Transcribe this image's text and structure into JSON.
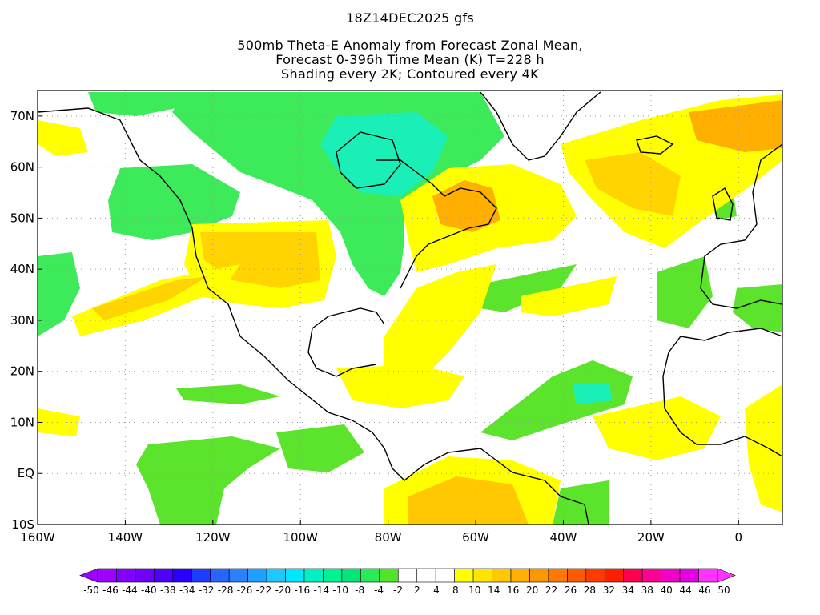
{
  "titles": {
    "line1": "18Z14DEC2025 gfs",
    "line2": "500mb Theta-E Anomaly from Forecast Zonal Mean,",
    "line3": "Forecast 0-396h Time Mean (K) T=228 h",
    "line4": "Shading every 2K; Contoured every 4K"
  },
  "map": {
    "lon_range": [
      -160,
      10
    ],
    "lat_range": [
      -10,
      75
    ],
    "lat_ticks": [
      {
        "value": 70,
        "label": "70N"
      },
      {
        "value": 60,
        "label": "60N"
      },
      {
        "value": 50,
        "label": "50N"
      },
      {
        "value": 40,
        "label": "40N"
      },
      {
        "value": 30,
        "label": "30N"
      },
      {
        "value": 20,
        "label": "20N"
      },
      {
        "value": 10,
        "label": "10N"
      },
      {
        "value": 0,
        "label": "EQ"
      },
      {
        "value": -10,
        "label": "10S"
      }
    ],
    "lon_ticks": [
      {
        "value": -160,
        "label": "160W"
      },
      {
        "value": -140,
        "label": "140W"
      },
      {
        "value": -120,
        "label": "120W"
      },
      {
        "value": -100,
        "label": "100W"
      },
      {
        "value": -80,
        "label": "80W"
      },
      {
        "value": -60,
        "label": "60W"
      },
      {
        "value": -40,
        "label": "40W"
      },
      {
        "value": -20,
        "label": "20W"
      },
      {
        "value": 0,
        "label": "0"
      }
    ]
  },
  "colorbar": {
    "labels": [
      "-50",
      "-46",
      "-44",
      "-40",
      "-38",
      "-34",
      "-32",
      "-28",
      "-26",
      "-22",
      "-20",
      "-16",
      "-14",
      "-10",
      "-8",
      "-4",
      "-2",
      "2",
      "4",
      "8",
      "10",
      "14",
      "16",
      "20",
      "22",
      "26",
      "28",
      "32",
      "34",
      "38",
      "40",
      "44",
      "46",
      "50"
    ],
    "colors": [
      "#a000ff",
      "#8200ff",
      "#6e00ff",
      "#5000ff",
      "#2800ff",
      "#1e3cff",
      "#2864ff",
      "#2882ff",
      "#1ea0ff",
      "#1ec8ff",
      "#00e6ff",
      "#00f0c8",
      "#00f096",
      "#00e678",
      "#28eb5a",
      "#50e628",
      "#ffffff",
      "#ffffff",
      "#ffffff",
      "#ffff00",
      "#ffe600",
      "#ffc800",
      "#ffaf00",
      "#ff9600",
      "#ff7800",
      "#ff5a00",
      "#ff3c00",
      "#ff1e00",
      "#ff0050",
      "#ff0096",
      "#f000c8",
      "#e600e6",
      "#ff32ff"
    ]
  },
  "colors": {
    "green": "#3dea5a",
    "teal": "#19efb7",
    "lime": "#5ce42c",
    "yellow": "#ffff00",
    "gold": "#ffd400",
    "orange": "#ffaf00",
    "dark_orange": "#ff9600"
  }
}
